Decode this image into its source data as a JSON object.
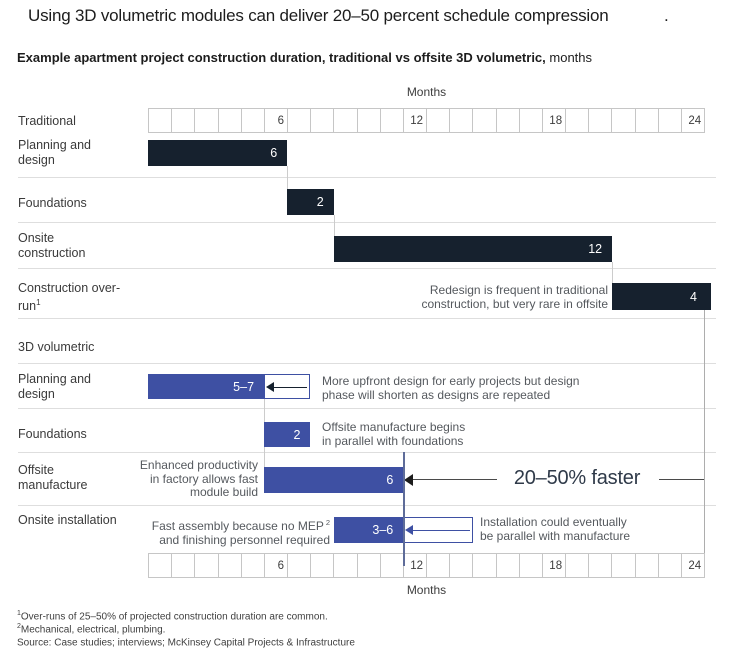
{
  "colors": {
    "navy": "#16212e",
    "blue": "#3e50a3",
    "grid_border": "#c6c6c6",
    "separator": "#dedede",
    "axis_text": "#3d3d3d",
    "label_text": "#3a3a3a",
    "annotation_text": "#55595e",
    "callout_text": "#2f3a49",
    "line_blue": "#5e6c99",
    "line_gray": "#adadad",
    "bar_label": "#ffffff"
  },
  "header": {
    "title": "Using 3D volumetric modules can deliver 20–50 percent schedule compression",
    "title_period": ".",
    "subtitle_bold": "Example apartment project construction duration, traditional vs offsite 3D volumetric,",
    "subtitle_suffix": " months"
  },
  "axis_label_top": "Months",
  "axis_label_bottom": "Months",
  "sections": {
    "traditional": "Traditional",
    "volumetric": "3D volumetric"
  },
  "callout": "20–50% faster",
  "footnotes": [
    {
      "sup": "1",
      "text": "Over-runs of 25–50% of projected construction duration are common."
    },
    {
      "sup": "2",
      "text": "Mechanical, electrical, plumbing."
    },
    {
      "sup": "",
      "text": "Source: Case studies; interviews;  McKinsey Capital Projects & Infrastructure"
    }
  ],
  "chart_data": {
    "type": "bar",
    "subtype": "gantt",
    "unit": "months",
    "title": "Example apartment project construction duration, traditional vs offsite 3D volumetric, months",
    "axis": {
      "min": 0,
      "max": 24,
      "ticks": [
        6,
        12,
        18,
        24
      ],
      "label": "Months"
    },
    "series": [
      {
        "section": "Traditional",
        "task": "Planning and design",
        "start": 0,
        "end": 6,
        "label": "6"
      },
      {
        "section": "Traditional",
        "task": "Foundations",
        "start": 6,
        "end": 8,
        "label": "2"
      },
      {
        "section": "Traditional",
        "task": "Onsite construction",
        "start": 8,
        "end": 20,
        "label": "12"
      },
      {
        "section": "Traditional",
        "task": "Construction over-run",
        "task_sup": "1",
        "start": 20,
        "end": 24,
        "label": "4",
        "annotation_lines": [
          "Redesign is frequent in traditional",
          "construction, but very rare in offsite"
        ]
      },
      {
        "section": "3D volumetric",
        "task": "Planning and design",
        "start": 0,
        "end": 5,
        "range_end": 7,
        "label": "5–7",
        "annotation_lines": [
          "More upfront design for early projects but design",
          "phase will shorten as designs are repeated"
        ]
      },
      {
        "section": "3D volumetric",
        "task": "Foundations",
        "start": 5,
        "end": 7,
        "label": "2",
        "annotation_lines": [
          "Offsite manufacture begins",
          "in parallel with foundations"
        ]
      },
      {
        "section": "3D volumetric",
        "task": "Offsite manufacture",
        "start": 5,
        "end": 11,
        "label": "6",
        "annotation_lines": [
          "Enhanced productivity",
          "in factory allows fast",
          "module build"
        ],
        "callout": "20–50% faster"
      },
      {
        "section": "3D volumetric",
        "task": "Onsite installation",
        "start": 8,
        "end": 11,
        "range_end": 14,
        "label": "3–6",
        "annotation_lines": [
          "Fast assembly because no MEP",
          "and finishing  personnel required"
        ],
        "annotation_sup": "2",
        "annotation_right_lines": [
          "Installation could eventually",
          "be parallel with manufacture"
        ]
      }
    ]
  }
}
